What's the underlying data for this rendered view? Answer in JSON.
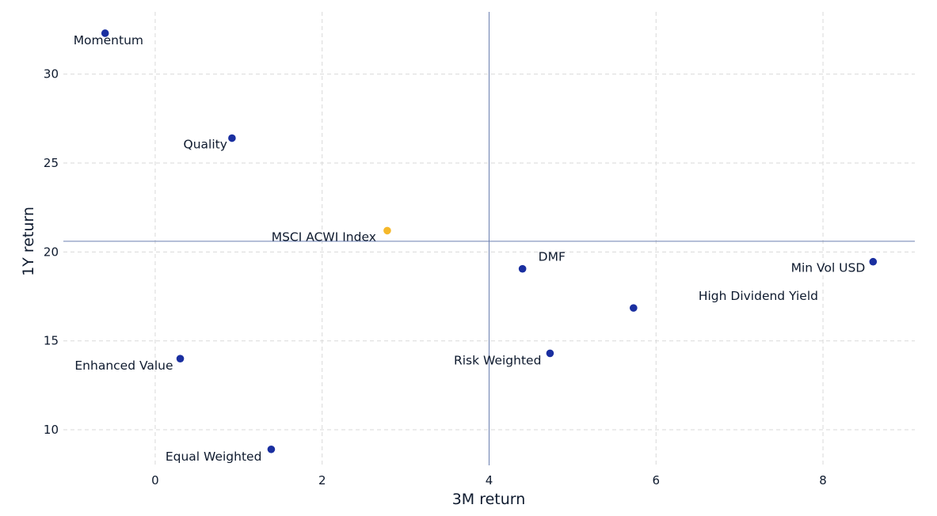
{
  "chart_data": {
    "type": "scatter",
    "title": "",
    "xlabel": "3M return",
    "ylabel": "1Y return",
    "xlim": [
      -1.1,
      9.1
    ],
    "ylim": [
      8.0,
      33.5
    ],
    "xticks": [
      0,
      2,
      4,
      6,
      8
    ],
    "yticks": [
      10,
      15,
      20,
      25,
      30
    ],
    "grid": true,
    "reference_lines": {
      "x": 4.0,
      "y": 20.6
    },
    "colors": {
      "point": "#1a2fa0",
      "highlight": "#f5b82a",
      "reference": "#6b7fb0"
    },
    "points": [
      {
        "label": "Momentum",
        "x": -0.6,
        "y": 32.3,
        "highlight": false
      },
      {
        "label": "Quality",
        "x": 0.92,
        "y": 26.4,
        "highlight": false
      },
      {
        "label": "MSCI ACWI Index",
        "x": 2.78,
        "y": 21.2,
        "highlight": true
      },
      {
        "label": "DMF",
        "x": 4.4,
        "y": 19.05,
        "highlight": false
      },
      {
        "label": "Min Vol USD",
        "x": 8.6,
        "y": 19.45,
        "highlight": false
      },
      {
        "label": "High Dividend Yield",
        "x": 5.73,
        "y": 16.85,
        "highlight": false
      },
      {
        "label": "Enhanced Value",
        "x": 0.3,
        "y": 14.0,
        "highlight": false
      },
      {
        "label": "Risk Weighted",
        "x": 4.73,
        "y": 14.3,
        "highlight": false
      },
      {
        "label": "Equal Weighted",
        "x": 1.39,
        "y": 8.9,
        "highlight": false
      }
    ]
  }
}
